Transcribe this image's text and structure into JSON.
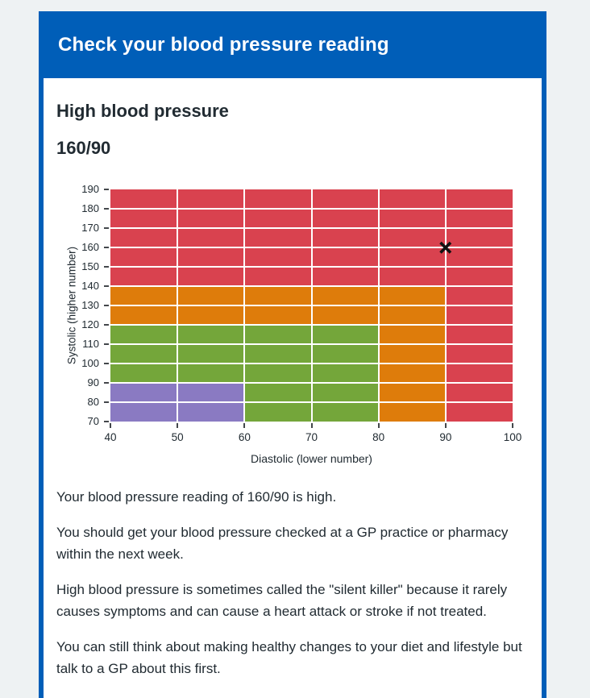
{
  "header": {
    "title": "Check your blood pressure reading",
    "background": "#005eb8",
    "text_color": "#ffffff"
  },
  "result": {
    "category": "High blood pressure",
    "reading": "160/90"
  },
  "paragraphs": [
    "Your blood pressure reading of 160/90 is high.",
    "You should get your blood pressure checked at a GP practice or pharmacy within the next week.",
    "High blood pressure is sometimes called the \"silent killer\" because it rarely causes symptoms and can cause a heart attack or stroke if not treated.",
    "You can still think about making healthy changes to your diet and lifestyle but talk to a GP about this first."
  ],
  "chart_data": {
    "type": "heatmap",
    "title": "",
    "xlabel": "Diastolic (lower number)",
    "ylabel": "Systolic (higher number)",
    "xlim": [
      40,
      100
    ],
    "ylim": [
      70,
      190
    ],
    "xticks": [
      40,
      50,
      60,
      70,
      80,
      90,
      100
    ],
    "yticks": [
      70,
      80,
      90,
      100,
      110,
      120,
      130,
      140,
      150,
      160,
      170,
      180,
      190
    ],
    "grid": {
      "x": [
        50,
        60,
        70,
        80,
        90
      ],
      "y": [
        80,
        90,
        100,
        110,
        120,
        130,
        140,
        150,
        160,
        170,
        180
      ],
      "color": "#ffffff"
    },
    "zones": [
      {
        "name": "high-top",
        "level": "high",
        "color": "#d9424f",
        "x": [
          40,
          100
        ],
        "y": [
          140,
          190
        ]
      },
      {
        "name": "high-right",
        "level": "high",
        "color": "#d9424f",
        "x": [
          90,
          100
        ],
        "y": [
          70,
          140
        ]
      },
      {
        "name": "slightly-raised-top",
        "level": "slightly-raised",
        "color": "#de7c0b",
        "x": [
          40,
          90
        ],
        "y": [
          120,
          140
        ]
      },
      {
        "name": "slightly-raised-right",
        "level": "slightly-raised",
        "color": "#de7c0b",
        "x": [
          80,
          90
        ],
        "y": [
          70,
          120
        ]
      },
      {
        "name": "healthy-top",
        "level": "healthy",
        "color": "#74a63a",
        "x": [
          40,
          80
        ],
        "y": [
          90,
          120
        ]
      },
      {
        "name": "healthy-right",
        "level": "healthy",
        "color": "#74a63a",
        "x": [
          60,
          80
        ],
        "y": [
          70,
          90
        ]
      },
      {
        "name": "low",
        "level": "low",
        "color": "#8a7ac2",
        "x": [
          40,
          60
        ],
        "y": [
          70,
          90
        ]
      }
    ],
    "marker": {
      "x": 90,
      "y": 160,
      "shape": "x",
      "color": "#111111"
    }
  },
  "colors": {
    "page_background": "#eef2f3",
    "card_border": "#005eb8",
    "body_text": "#212b32",
    "tick": "#43474b"
  }
}
